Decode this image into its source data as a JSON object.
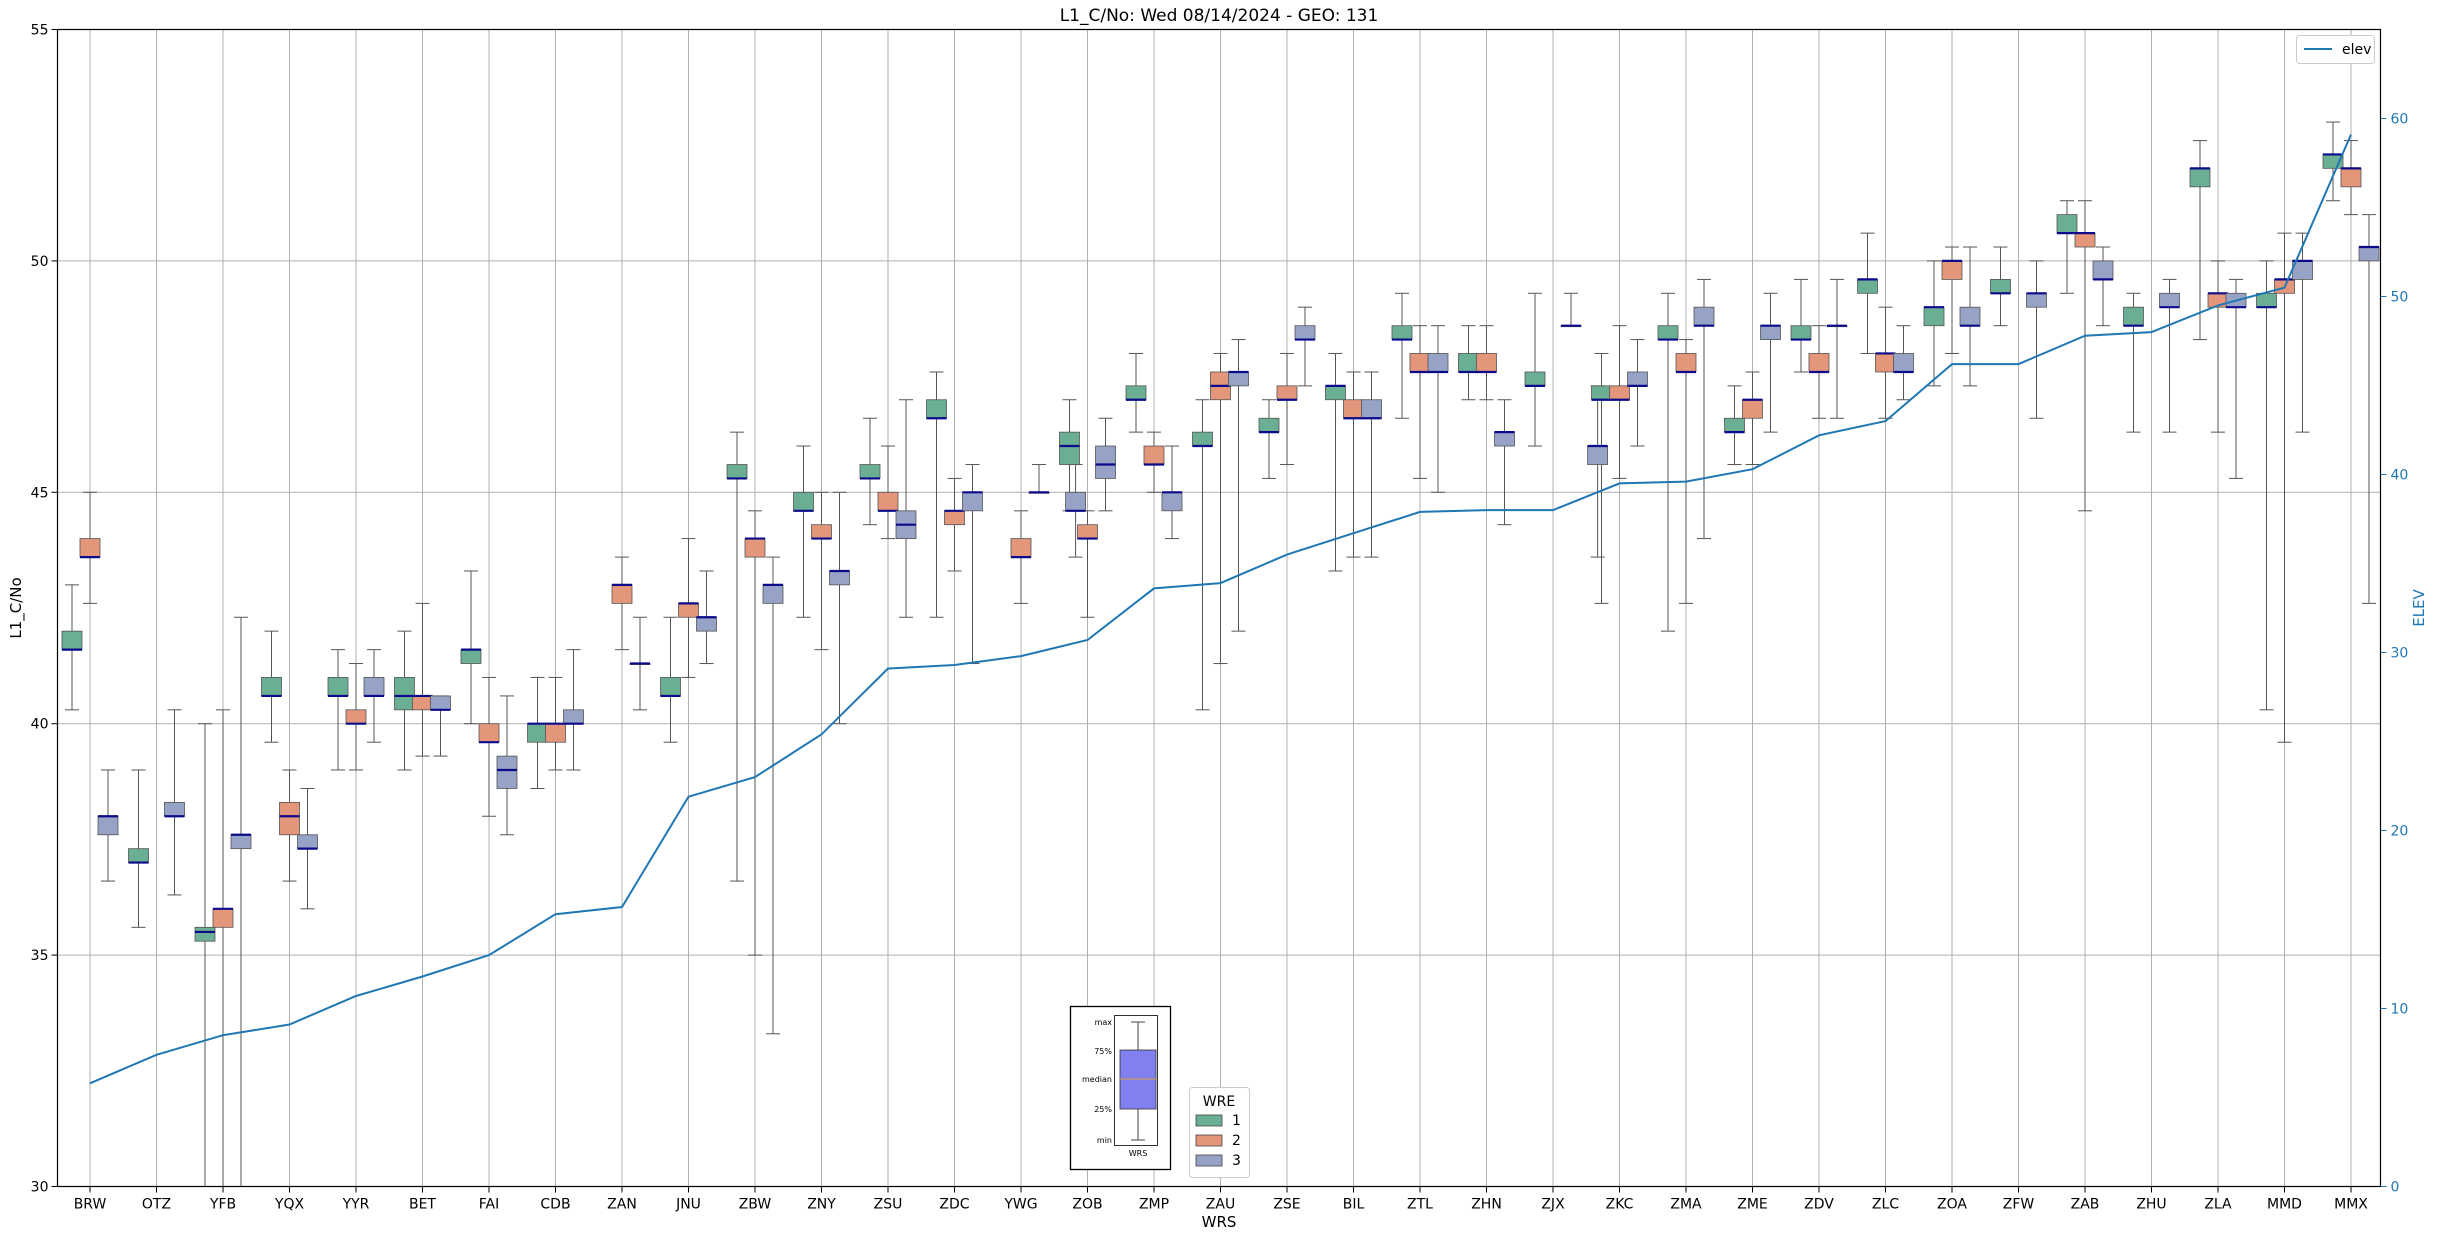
{
  "chart_data": {
    "type": "box",
    "title": "L1_C/No: Wed 08/14/2024 - GEO: 131",
    "xlabel": "WRS",
    "ylabel": "L1_C/No",
    "y2label": "ELEV",
    "ylim": [
      30,
      55
    ],
    "y2lim": [
      0,
      65
    ],
    "yticks": [
      "30",
      "35",
      "40",
      "45",
      "50",
      "55"
    ],
    "y2ticks": [
      "0",
      "10",
      "20",
      "30",
      "40",
      "50",
      "60"
    ],
    "grid": true,
    "categories": [
      "BRW",
      "OTZ",
      "YFB",
      "YQX",
      "YYR",
      "BET",
      "FAI",
      "CDB",
      "ZAN",
      "JNU",
      "ZBW",
      "ZNY",
      "ZSU",
      "ZDC",
      "YWG",
      "ZOB",
      "ZMP",
      "ZAU",
      "ZSE",
      "BIL",
      "ZTL",
      "ZHN",
      "ZJX",
      "ZKC",
      "ZMA",
      "ZME",
      "ZDV",
      "ZLC",
      "ZOA",
      "ZFW",
      "ZAB",
      "ZHU",
      "ZLA",
      "MMD",
      "MMX"
    ],
    "box_legend": {
      "title": "WRE",
      "entries": [
        {
          "label": "1",
          "color": "#6aaf94"
        },
        {
          "label": "2",
          "color": "#e4967a"
        },
        {
          "label": "3",
          "color": "#96a2c6"
        }
      ]
    },
    "box_key": {
      "labels": [
        "max",
        "75%",
        "median",
        "25%",
        "min"
      ],
      "xlabel": "WRS",
      "color": "#8080ee"
    },
    "series": [
      {
        "name": "1",
        "color": "#6aaf94",
        "boxes": [
          [
            0,
            40.3,
            41.6,
            41.6,
            42.0,
            43.0
          ],
          [
            1,
            35.6,
            37.0,
            37.0,
            37.3,
            39.0
          ],
          [
            2,
            30.0,
            35.3,
            35.5,
            35.6,
            40.0
          ],
          [
            3,
            39.6,
            40.6,
            40.6,
            41.0,
            42.0
          ],
          [
            4,
            39.0,
            40.6,
            40.6,
            41.0,
            41.6
          ],
          [
            5,
            39.0,
            40.3,
            40.6,
            41.0,
            42.0
          ],
          [
            6,
            40.0,
            41.3,
            41.6,
            41.6,
            43.3
          ],
          [
            7,
            38.6,
            39.6,
            40.0,
            40.0,
            41.0
          ],
          [
            9,
            39.6,
            40.6,
            40.6,
            41.0,
            42.3
          ],
          [
            10,
            36.6,
            45.3,
            45.3,
            45.6,
            46.3
          ],
          [
            11,
            42.3,
            44.6,
            44.6,
            45.0,
            46.0
          ],
          [
            12,
            44.3,
            45.3,
            45.3,
            45.6,
            46.6
          ],
          [
            13,
            42.3,
            46.6,
            46.6,
            47.0,
            47.6
          ],
          [
            15,
            44.6,
            45.6,
            46.0,
            46.3,
            47.0
          ],
          [
            16,
            46.3,
            47.0,
            47.0,
            47.3,
            48.0
          ],
          [
            17,
            40.3,
            46.0,
            46.0,
            46.3,
            47.0
          ],
          [
            18,
            45.3,
            46.3,
            46.3,
            46.6,
            47.0
          ],
          [
            19,
            43.3,
            47.0,
            47.3,
            47.3,
            48.0
          ],
          [
            20,
            46.6,
            48.3,
            48.3,
            48.6,
            49.3
          ],
          [
            21,
            47.0,
            47.6,
            47.6,
            48.0,
            48.6
          ],
          [
            22,
            46.0,
            47.3,
            47.3,
            47.6,
            49.3
          ],
          [
            23,
            42.6,
            47.0,
            47.0,
            47.3,
            48.0
          ],
          [
            24,
            42.0,
            48.3,
            48.3,
            48.6,
            49.3
          ],
          [
            25,
            45.6,
            46.3,
            46.3,
            46.6,
            47.3
          ],
          [
            26,
            47.6,
            48.3,
            48.3,
            48.6,
            49.6
          ],
          [
            27,
            48.0,
            49.3,
            49.6,
            49.6,
            50.6
          ],
          [
            28,
            47.3,
            48.6,
            49.0,
            49.0,
            50.0
          ],
          [
            29,
            48.6,
            49.3,
            49.3,
            49.6,
            50.3
          ],
          [
            30,
            49.3,
            50.6,
            50.6,
            51.0,
            51.3
          ],
          [
            31,
            46.3,
            48.6,
            48.6,
            49.0,
            49.3
          ],
          [
            32,
            48.3,
            51.6,
            52.0,
            52.0,
            52.6
          ],
          [
            33,
            40.3,
            49.0,
            49.0,
            49.3,
            50.0
          ],
          [
            34,
            51.3,
            52.0,
            52.3,
            52.3,
            53.0
          ]
        ]
      },
      {
        "name": "2",
        "color": "#e4967a",
        "boxes": [
          [
            0,
            42.6,
            43.6,
            43.6,
            44.0,
            45.0
          ],
          [
            2,
            30.0,
            35.6,
            36.0,
            36.0,
            40.3
          ],
          [
            3,
            36.6,
            37.6,
            38.0,
            38.3,
            39.0
          ],
          [
            4,
            39.0,
            40.0,
            40.0,
            40.3,
            41.3
          ],
          [
            5,
            39.3,
            40.3,
            40.6,
            40.6,
            42.6
          ],
          [
            6,
            38.0,
            39.6,
            39.6,
            40.0,
            41.0
          ],
          [
            7,
            39.0,
            39.6,
            40.0,
            40.0,
            41.0
          ],
          [
            8,
            41.6,
            42.6,
            43.0,
            43.0,
            43.6
          ],
          [
            9,
            41.0,
            42.3,
            42.6,
            42.6,
            44.0
          ],
          [
            10,
            35.0,
            43.6,
            44.0,
            44.0,
            44.6
          ],
          [
            11,
            41.6,
            44.0,
            44.0,
            44.3,
            45.0
          ],
          [
            12,
            44.0,
            44.6,
            44.6,
            45.0,
            46.0
          ],
          [
            13,
            43.3,
            44.3,
            44.6,
            44.6,
            45.3
          ],
          [
            14,
            42.6,
            43.6,
            43.6,
            44.0,
            44.6
          ],
          [
            15,
            42.3,
            44.0,
            44.0,
            44.3,
            44.6
          ],
          [
            16,
            45.0,
            45.6,
            45.6,
            46.0,
            46.3
          ],
          [
            17,
            41.3,
            47.0,
            47.3,
            47.6,
            48.0
          ],
          [
            18,
            45.6,
            47.0,
            47.0,
            47.3,
            48.0
          ],
          [
            19,
            43.6,
            46.6,
            46.6,
            47.0,
            47.6
          ],
          [
            20,
            45.3,
            47.6,
            47.6,
            48.0,
            48.6
          ],
          [
            21,
            47.0,
            47.6,
            47.6,
            48.0,
            48.6
          ],
          [
            23,
            45.3,
            47.0,
            47.0,
            47.3,
            48.6
          ],
          [
            24,
            42.6,
            47.6,
            47.6,
            48.0,
            48.3
          ],
          [
            25,
            45.6,
            46.6,
            47.0,
            47.0,
            47.6
          ],
          [
            26,
            46.6,
            47.6,
            47.6,
            48.0,
            48.6
          ],
          [
            27,
            46.6,
            47.6,
            48.0,
            48.0,
            49.0
          ],
          [
            28,
            48.0,
            49.6,
            50.0,
            50.0,
            50.3
          ],
          [
            30,
            44.6,
            50.3,
            50.6,
            50.6,
            51.3
          ],
          [
            32,
            46.3,
            49.0,
            49.3,
            49.3,
            50.0
          ],
          [
            33,
            39.6,
            49.3,
            49.6,
            49.6,
            50.6
          ],
          [
            34,
            51.0,
            51.6,
            52.0,
            52.0,
            52.6
          ]
        ]
      },
      {
        "name": "3",
        "color": "#96a2c6",
        "boxes": [
          [
            0,
            36.6,
            37.6,
            38.0,
            38.0,
            39.0
          ],
          [
            1,
            36.3,
            38.0,
            38.0,
            38.3,
            40.3
          ],
          [
            2,
            30.0,
            37.3,
            37.6,
            37.6,
            42.3
          ],
          [
            3,
            36.0,
            37.3,
            37.3,
            37.6,
            38.6
          ],
          [
            4,
            39.6,
            40.6,
            40.6,
            41.0,
            41.6
          ],
          [
            5,
            39.3,
            40.3,
            40.3,
            40.6,
            40.6
          ],
          [
            6,
            37.6,
            38.6,
            39.0,
            39.3,
            40.6
          ],
          [
            7,
            39.0,
            40.0,
            40.0,
            40.3,
            41.6
          ],
          [
            8,
            40.3,
            41.3,
            41.3,
            41.3,
            42.3
          ],
          [
            9,
            41.3,
            42.0,
            42.3,
            42.3,
            43.3
          ],
          [
            10,
            33.3,
            42.6,
            43.0,
            43.0,
            43.6
          ],
          [
            11,
            40.0,
            43.0,
            43.3,
            43.3,
            45.0
          ],
          [
            12,
            42.3,
            44.0,
            44.3,
            44.6,
            47.0
          ],
          [
            13,
            41.3,
            44.6,
            45.0,
            45.0,
            45.6
          ],
          [
            14,
            45.0,
            45.0,
            45.0,
            45.0,
            45.6
          ],
          [
            14.55,
            43.6,
            44.6,
            44.6,
            45.0,
            45.6
          ],
          [
            15,
            44.6,
            45.3,
            45.6,
            46.0,
            46.6
          ],
          [
            16,
            44.0,
            44.6,
            45.0,
            45.0,
            46.0
          ],
          [
            17,
            42.0,
            47.3,
            47.6,
            47.6,
            48.3
          ],
          [
            18,
            47.3,
            48.3,
            48.3,
            48.6,
            49.0
          ],
          [
            19,
            43.6,
            46.6,
            46.6,
            47.0,
            47.6
          ],
          [
            20,
            45.0,
            47.6,
            47.6,
            48.0,
            48.6
          ],
          [
            21,
            44.3,
            46.0,
            46.3,
            46.3,
            47.0
          ],
          [
            22,
            48.6,
            48.6,
            48.6,
            48.6,
            49.3
          ],
          [
            22.4,
            43.6,
            45.6,
            46.0,
            46.0,
            47.3
          ],
          [
            23,
            46.0,
            47.3,
            47.3,
            47.6,
            48.3
          ],
          [
            24,
            44.0,
            48.6,
            48.6,
            49.0,
            49.6
          ],
          [
            25,
            46.3,
            48.3,
            48.6,
            48.6,
            49.3
          ],
          [
            26,
            46.6,
            48.6,
            48.6,
            48.6,
            49.6
          ],
          [
            27,
            47.0,
            47.6,
            47.6,
            48.0,
            48.6
          ],
          [
            28,
            47.3,
            48.6,
            48.6,
            49.0,
            50.3
          ],
          [
            29,
            46.6,
            49.0,
            49.3,
            49.3,
            50.0
          ],
          [
            30,
            48.6,
            49.6,
            49.6,
            50.0,
            50.3
          ],
          [
            31,
            46.3,
            49.0,
            49.0,
            49.3,
            49.6
          ],
          [
            32,
            45.3,
            49.0,
            49.0,
            49.3,
            49.6
          ],
          [
            33,
            46.3,
            49.6,
            50.0,
            50.0,
            50.6
          ],
          [
            34,
            42.6,
            50.0,
            50.3,
            50.3,
            51.0
          ]
        ]
      }
    ],
    "line_series": {
      "name": "elev",
      "color": "#1f77b4",
      "x": [
        "BRW",
        "OTZ",
        "YFB",
        "YQX",
        "YYR",
        "BET",
        "FAI",
        "CDB",
        "ZAN",
        "JNU",
        "ZBW",
        "ZNY",
        "ZSU",
        "ZDC",
        "YWG",
        "ZOB",
        "ZMP",
        "ZAU",
        "ZSE",
        "BIL",
        "ZTL",
        "ZHN",
        "ZJX",
        "ZKC",
        "ZMA",
        "ZME",
        "ZDV",
        "ZLC",
        "ZOA",
        "ZFW",
        "ZAB",
        "ZHU",
        "ZLA",
        "MMD",
        "MMX"
      ],
      "y": [
        5.8,
        7.4,
        8.5,
        9.1,
        10.7,
        11.8,
        13.0,
        15.3,
        15.7,
        21.9,
        23.0,
        25.4,
        29.1,
        29.3,
        29.8,
        30.7,
        33.6,
        33.9,
        35.5,
        36.7,
        37.9,
        38.0,
        38.0,
        39.5,
        39.6,
        40.3,
        42.2,
        43.0,
        46.2,
        46.2,
        47.8,
        48.0,
        49.5,
        50.5,
        59.1
      ]
    },
    "line_legend": {
      "label": "elev",
      "placement": "upper right"
    }
  }
}
